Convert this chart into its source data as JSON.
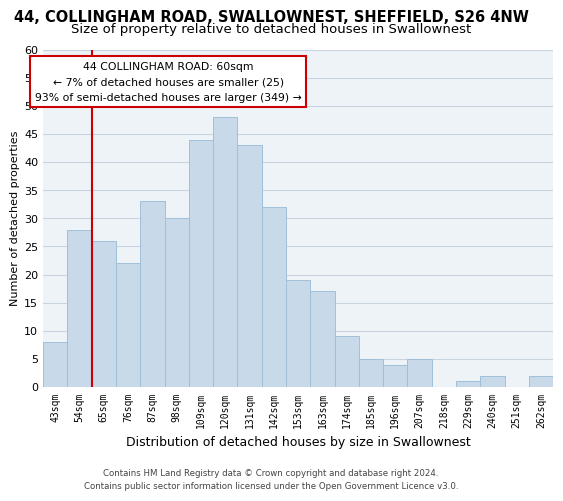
{
  "title": "44, COLLINGHAM ROAD, SWALLOWNEST, SHEFFIELD, S26 4NW",
  "subtitle": "Size of property relative to detached houses in Swallownest",
  "xlabel": "Distribution of detached houses by size in Swallownest",
  "ylabel": "Number of detached properties",
  "footer_line1": "Contains HM Land Registry data © Crown copyright and database right 2024.",
  "footer_line2": "Contains public sector information licensed under the Open Government Licence v3.0.",
  "bin_labels": [
    "43sqm",
    "54sqm",
    "65sqm",
    "76sqm",
    "87sqm",
    "98sqm",
    "109sqm",
    "120sqm",
    "131sqm",
    "142sqm",
    "153sqm",
    "163sqm",
    "174sqm",
    "185sqm",
    "196sqm",
    "207sqm",
    "218sqm",
    "229sqm",
    "240sqm",
    "251sqm",
    "262sqm"
  ],
  "bar_heights": [
    8,
    28,
    26,
    22,
    33,
    30,
    44,
    48,
    43,
    32,
    19,
    17,
    9,
    5,
    4,
    5,
    0,
    1,
    2,
    0,
    2
  ],
  "bar_color": "#c8daea",
  "bar_edge_color": "#a0c0d8",
  "vline_x_index": 1.5,
  "vline_color": "#cc0000",
  "annotation_title": "44 COLLINGHAM ROAD: 60sqm",
  "annotation_line1": "← 7% of detached houses are smaller (25)",
  "annotation_line2": "93% of semi-detached houses are larger (349) →",
  "annotation_box_color": "#ffffff",
  "annotation_box_edge_color": "#cc0000",
  "ylim": [
    0,
    60
  ],
  "yticks": [
    0,
    5,
    10,
    15,
    20,
    25,
    30,
    35,
    40,
    45,
    50,
    55,
    60
  ],
  "background_color": "#ffffff",
  "plot_bg_color": "#eef3f8",
  "grid_color": "#c8d4de",
  "title_fontsize": 10.5,
  "subtitle_fontsize": 9.5
}
